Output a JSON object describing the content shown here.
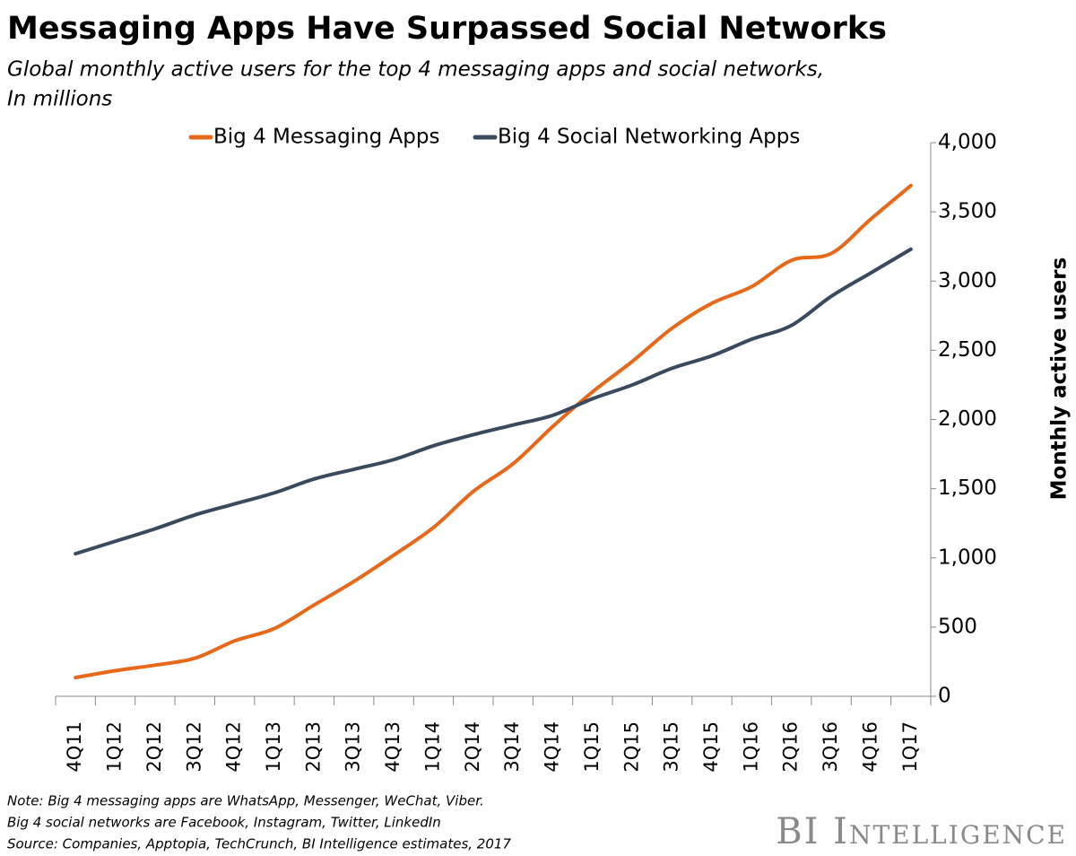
{
  "chart_data": {
    "type": "line",
    "title": "Messaging Apps Have Surpassed Social Networks",
    "subtitle": [
      "Global monthly active users for the top 4 messaging apps and social networks,",
      "In millions"
    ],
    "y_label": "Monthly active users",
    "categories": [
      "4Q11",
      "1Q12",
      "2Q12",
      "3Q12",
      "4Q12",
      "1Q13",
      "2Q13",
      "3Q13",
      "4Q13",
      "1Q14",
      "2Q14",
      "3Q14",
      "4Q14",
      "1Q15",
      "2Q15",
      "3Q15",
      "4Q15",
      "1Q16",
      "2Q16",
      "3Q16",
      "4Q16",
      "1Q17"
    ],
    "series": [
      {
        "name": "Big 4 Messaging Apps",
        "color": "#e8681a",
        "values": [
          135,
          185,
          225,
          275,
          400,
          490,
          660,
          830,
          1020,
          1220,
          1480,
          1680,
          1950,
          2200,
          2420,
          2660,
          2840,
          2960,
          3150,
          3200,
          3450,
          3690
        ]
      },
      {
        "name": "Big 4 Social Networking Apps",
        "color": "#3a4a5e",
        "values": [
          1030,
          1120,
          1210,
          1310,
          1390,
          1470,
          1570,
          1640,
          1710,
          1810,
          1890,
          1960,
          2030,
          2150,
          2250,
          2370,
          2460,
          2580,
          2680,
          2890,
          3060,
          3230
        ]
      }
    ],
    "ylim": [
      0,
      4000
    ],
    "yticks": [
      0,
      {
        "value": 500,
        "label": "500"
      },
      {
        "value": 1000,
        "label": "1,000"
      },
      {
        "value": 1500,
        "label": "1,500"
      },
      {
        "value": 2000,
        "label": "2,000"
      },
      {
        "value": 2500,
        "label": "2,500"
      },
      {
        "value": 3000,
        "label": "3,000"
      },
      {
        "value": 3500,
        "label": "3,500"
      },
      {
        "value": 4000,
        "label": "4,000"
      }
    ],
    "y_axis_side": "right",
    "legend": "top",
    "grid": false,
    "notes": [
      "Note: Big 4 messaging apps are WhatsApp, Messenger, WeChat, Viber.",
      "Big 4 social networks are Facebook, Instagram, Twitter, LinkedIn",
      "Source: Companies,  Apptopia, TechCrunch,  BI Intelligence estimates, 2017"
    ],
    "brand": "BI Intelligence"
  }
}
